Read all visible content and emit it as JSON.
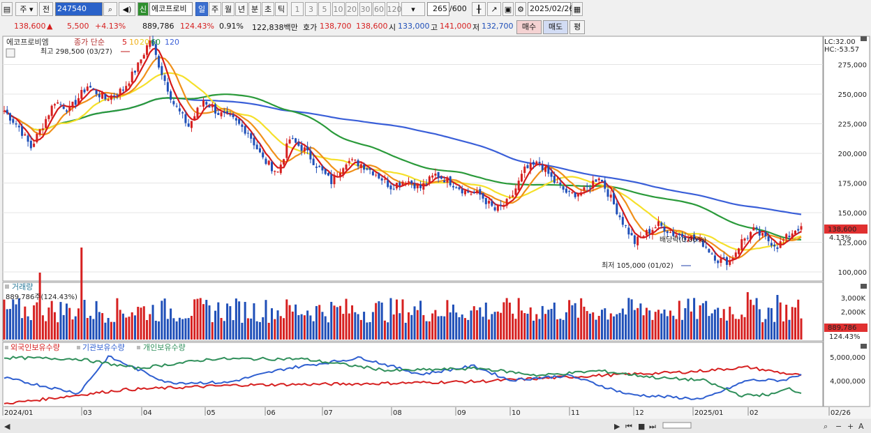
{
  "toolbar": {
    "market": "주",
    "prev": "전",
    "code": "247540",
    "name": "에코프로비",
    "new_badge": "신",
    "periods": [
      "일",
      "주",
      "월",
      "년",
      "분",
      "초",
      "틱"
    ],
    "minutes": [
      "1",
      "3",
      "5",
      "10",
      "20",
      "30",
      "60",
      "120"
    ],
    "count": "265",
    "count_max": "/600",
    "date": "2025/02/26"
  },
  "quote": {
    "price": "138,600",
    "arrow": "▲",
    "change": "5,500",
    "change_pct": "+4.13%",
    "volume": "889,786",
    "vol_ratio": "124.43%",
    "turnover": "0.91%",
    "amount": "122,838백만",
    "bid_label": "호가",
    "bid1": "138,700",
    "bid2": "138,600",
    "open_label": "시",
    "open": "133,000",
    "high_label": "고",
    "high": "141,000",
    "low_label": "저",
    "low": "132,700",
    "buy": "매수",
    "sell": "매도",
    "eval": "평"
  },
  "colors": {
    "up": "#d62020",
    "down": "#1f4fb8",
    "ma5": "#d61a1a",
    "ma10": "#f0901a",
    "ma20": "#f5e02a",
    "ma60": "#2a9a3a",
    "ma120": "#3a5fd8",
    "inst": "#2f8f5a"
  },
  "chart_data": [
    {
      "type": "candlestick",
      "title": "에코프로비엠",
      "legend": {
        "label": "종가 단순",
        "periods": [
          "5",
          "10",
          "20",
          "60",
          "120"
        ]
      },
      "y_ticks": [
        "275,000",
        "250,000",
        "225,000",
        "200,000",
        "175,000",
        "150,000",
        "125,000",
        "100,000"
      ],
      "ylim": [
        100000,
        300000
      ],
      "right_top": [
        "LC:32.00",
        "HC:-53.57"
      ],
      "last_price_tag": "138,600",
      "last_change_tag": "4.13%",
      "annotations": {
        "high": "최고 298,500 (03/27)",
        "low": "최저 105,000 (01/02)",
        "dividend": "배당락(0.00%)"
      },
      "anchors": [
        [
          0,
          236000
        ],
        [
          5,
          222000
        ],
        [
          9,
          205000
        ],
        [
          13,
          224000
        ],
        [
          17,
          244000
        ],
        [
          22,
          237000
        ],
        [
          28,
          257000
        ],
        [
          34,
          246000
        ],
        [
          40,
          254000
        ],
        [
          45,
          274000
        ],
        [
          49,
          296000
        ],
        [
          53,
          268000
        ],
        [
          57,
          242000
        ],
        [
          62,
          223000
        ],
        [
          67,
          245000
        ],
        [
          72,
          234000
        ],
        [
          77,
          228000
        ],
        [
          82,
          218000
        ],
        [
          87,
          195000
        ],
        [
          92,
          184000
        ],
        [
          96,
          212000
        ],
        [
          101,
          203000
        ],
        [
          106,
          187000
        ],
        [
          110,
          176000
        ],
        [
          115,
          194000
        ],
        [
          120,
          191000
        ],
        [
          125,
          183000
        ],
        [
          130,
          172000
        ],
        [
          135,
          178000
        ],
        [
          140,
          171000
        ],
        [
          145,
          182000
        ],
        [
          150,
          176000
        ],
        [
          155,
          168000
        ],
        [
          160,
          165000
        ],
        [
          165,
          152000
        ],
        [
          170,
          160000
        ],
        [
          175,
          186000
        ],
        [
          180,
          192000
        ],
        [
          185,
          176000
        ],
        [
          190,
          165000
        ],
        [
          195,
          168000
        ],
        [
          200,
          181000
        ],
        [
          204,
          162000
        ],
        [
          208,
          142000
        ],
        [
          212,
          125000
        ],
        [
          216,
          133000
        ],
        [
          220,
          140000
        ],
        [
          225,
          132000
        ],
        [
          230,
          130000
        ],
        [
          235,
          124000
        ],
        [
          240,
          110000
        ],
        [
          244,
          109000
        ],
        [
          248,
          126000
        ],
        [
          252,
          135000
        ],
        [
          256,
          128000
        ],
        [
          260,
          122000
        ],
        [
          264,
          131000
        ],
        [
          266,
          136000
        ],
        [
          268,
          138600
        ]
      ]
    },
    {
      "type": "bar",
      "title": "거래량",
      "value_text": "889,786주(124.43%)",
      "y_ticks": [
        "3,000K",
        "2,000K",
        "1,000K"
      ],
      "last_tag": "889,786",
      "last_pct": "124.43%"
    },
    {
      "type": "line",
      "series": [
        {
          "name": "외국인보유수량"
        },
        {
          "name": "기관보유수량"
        },
        {
          "name": "개인보유수량"
        }
      ],
      "y_ticks": [
        "5,000,000",
        "4,000,000"
      ],
      "anchors": {
        "외국인보유수량": [
          [
            0,
            3.05
          ],
          [
            40,
            3.65
          ],
          [
            80,
            3.85
          ],
          [
            120,
            3.9
          ],
          [
            160,
            4.0
          ],
          [
            200,
            4.25
          ],
          [
            230,
            4.4
          ],
          [
            250,
            4.6
          ],
          [
            262,
            4.35
          ],
          [
            268,
            4.25
          ]
        ],
        "기관보유수량": [
          [
            0,
            4.15
          ],
          [
            25,
            3.5
          ],
          [
            35,
            5.05
          ],
          [
            55,
            3.95
          ],
          [
            75,
            3.95
          ],
          [
            95,
            4.55
          ],
          [
            120,
            5.0
          ],
          [
            140,
            4.3
          ],
          [
            158,
            4.65
          ],
          [
            170,
            4.05
          ],
          [
            190,
            4.25
          ],
          [
            210,
            3.45
          ],
          [
            235,
            3.25
          ],
          [
            250,
            4.05
          ],
          [
            262,
            4.05
          ],
          [
            268,
            4.3
          ]
        ],
        "개인보유수량": [
          [
            0,
            5.0
          ],
          [
            25,
            4.95
          ],
          [
            45,
            4.55
          ],
          [
            70,
            4.95
          ],
          [
            100,
            4.95
          ],
          [
            130,
            4.45
          ],
          [
            160,
            4.55
          ],
          [
            180,
            4.25
          ],
          [
            200,
            4.45
          ],
          [
            220,
            4.15
          ],
          [
            235,
            4.05
          ],
          [
            248,
            3.4
          ],
          [
            258,
            3.45
          ],
          [
            264,
            3.7
          ],
          [
            268,
            3.5
          ]
        ]
      }
    }
  ],
  "x_labels": [
    "2024/01",
    "03",
    "04",
    "05",
    "06",
    "07",
    "08",
    "09",
    "10",
    "11",
    "12",
    "2025/01",
    "02",
    "02/26"
  ]
}
